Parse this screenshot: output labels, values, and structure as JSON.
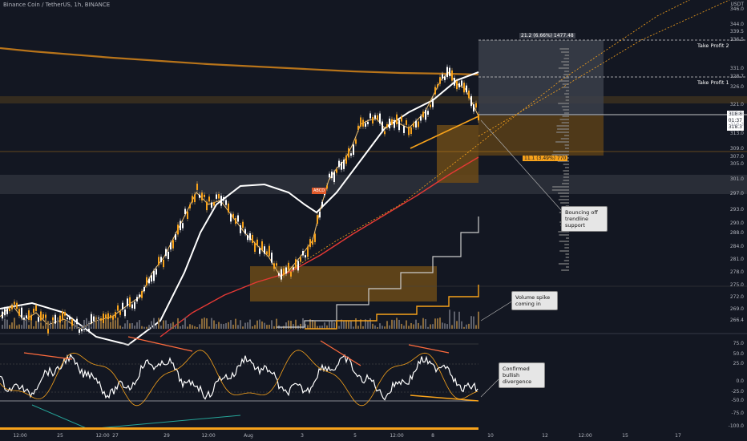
{
  "header": {
    "title": "Binance Coin / TetherUS, 1h, BINANCE",
    "currency": "USDT"
  },
  "price_axis": {
    "labels": [
      "346.0",
      "344.0",
      "339.5",
      "336.5",
      "331.0",
      "328.7",
      "326.0",
      "321.0",
      "318.8",
      "318.3",
      "313.0",
      "309.0",
      "307.0",
      "305.0",
      "301.0",
      "297.0",
      "293.0",
      "290.0",
      "288.0",
      "284.0",
      "281.0",
      "278.0",
      "275.0",
      "272.0",
      "269.0",
      "266.4"
    ],
    "current_price": "318.8",
    "current_time": "01:37",
    "current_price_2": "318.3"
  },
  "oscillator_axis": {
    "labels": [
      "75.0",
      "50.0",
      "25.0",
      "0.0",
      "-25.0",
      "-50.0",
      "-75.0",
      "-100.0"
    ]
  },
  "time_axis": {
    "labels": [
      "12:00",
      "25",
      "12:00",
      "27",
      "29",
      "12:00",
      "Aug",
      "3",
      "5",
      "12:00",
      "8",
      "10",
      "12",
      "12:00",
      "15",
      "17"
    ]
  },
  "annotations": {
    "take_profit_2": "Take Profit 2",
    "take_profit_1": "Take Profit 1",
    "target_box": "21.2 (6.66%) 1477.48",
    "stop_box": "11.1 (3.49%) 770",
    "abcd_label": "ABCD",
    "callout_trendline": "Bouncing off trendline support",
    "callout_volume": "Volume spike coming in",
    "callout_divergence": "Confirmed bullish divergence"
  },
  "colors": {
    "background": "#131722",
    "accent_orange": "#f7a21b",
    "zone_orange": "#8a5a14",
    "band_gray": "#2a2e39",
    "ma_red": "#e53935",
    "ma_white": "#ffffff",
    "ema_orange": "#ff9800"
  }
}
